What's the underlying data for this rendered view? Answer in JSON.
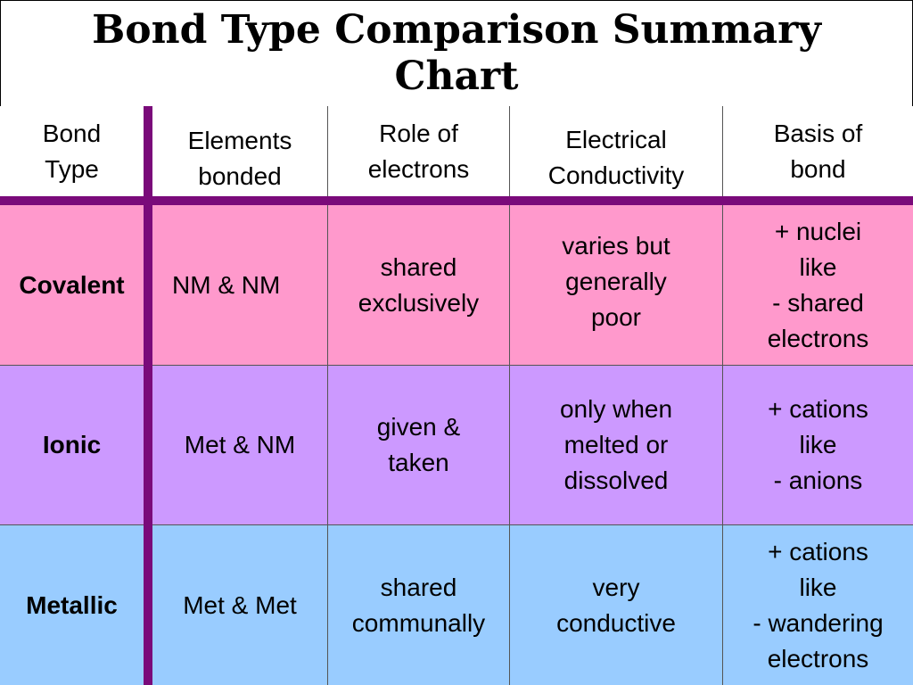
{
  "title": "Bond Type Comparison Summary Chart",
  "colors": {
    "covalent_row": "#ff99cc",
    "ionic_row": "#cc99ff",
    "metallic_row": "#99ccff",
    "divider": "#7a0a7a"
  },
  "headers": [
    "Bond\nType",
    "Elements\nbonded",
    "Role of\nelectrons",
    "Electrical\nConductivity",
    "Basis of\nbond"
  ],
  "rows": [
    {
      "bond_type": "Covalent",
      "elements": "NM & NM",
      "role": "shared\nexclusively",
      "conductivity": "varies but\ngenerally\npoor",
      "basis": "+ nuclei\nlike\n- shared\nelectrons"
    },
    {
      "bond_type": "Ionic",
      "elements": "Met & NM",
      "role": "given &\ntaken",
      "conductivity": "only when\nmelted or\ndissolved",
      "basis": "+ cations\nlike\n- anions"
    },
    {
      "bond_type": "Metallic",
      "elements": "Met & Met",
      "role": "shared\ncommunally",
      "conductivity": "very\nconductive",
      "basis": "+ cations\nlike\n- wandering\nelectrons"
    }
  ]
}
